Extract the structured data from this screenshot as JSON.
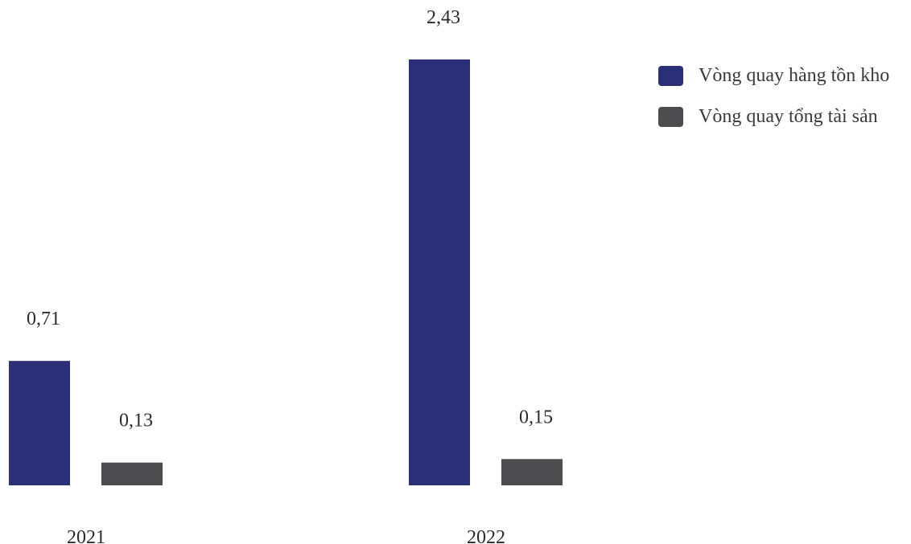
{
  "chart_data": {
    "type": "bar",
    "title": "",
    "xlabel": "",
    "ylabel": "",
    "categories": [
      "2021",
      "2022"
    ],
    "ylim": [
      0,
      2.43
    ],
    "grid": false,
    "legend_position": "top-right",
    "series": [
      {
        "name": "Vòng quay hàng tồn kho",
        "color": "#2b2f77",
        "values": [
          0.71,
          2.43
        ],
        "labels": [
          "0,71",
          "2,43"
        ]
      },
      {
        "name": "Vòng quay tổng tài sản",
        "color": "#4d4d4f",
        "values": [
          0.13,
          0.15
        ],
        "labels": [
          "0,13",
          "0,15"
        ]
      }
    ]
  }
}
